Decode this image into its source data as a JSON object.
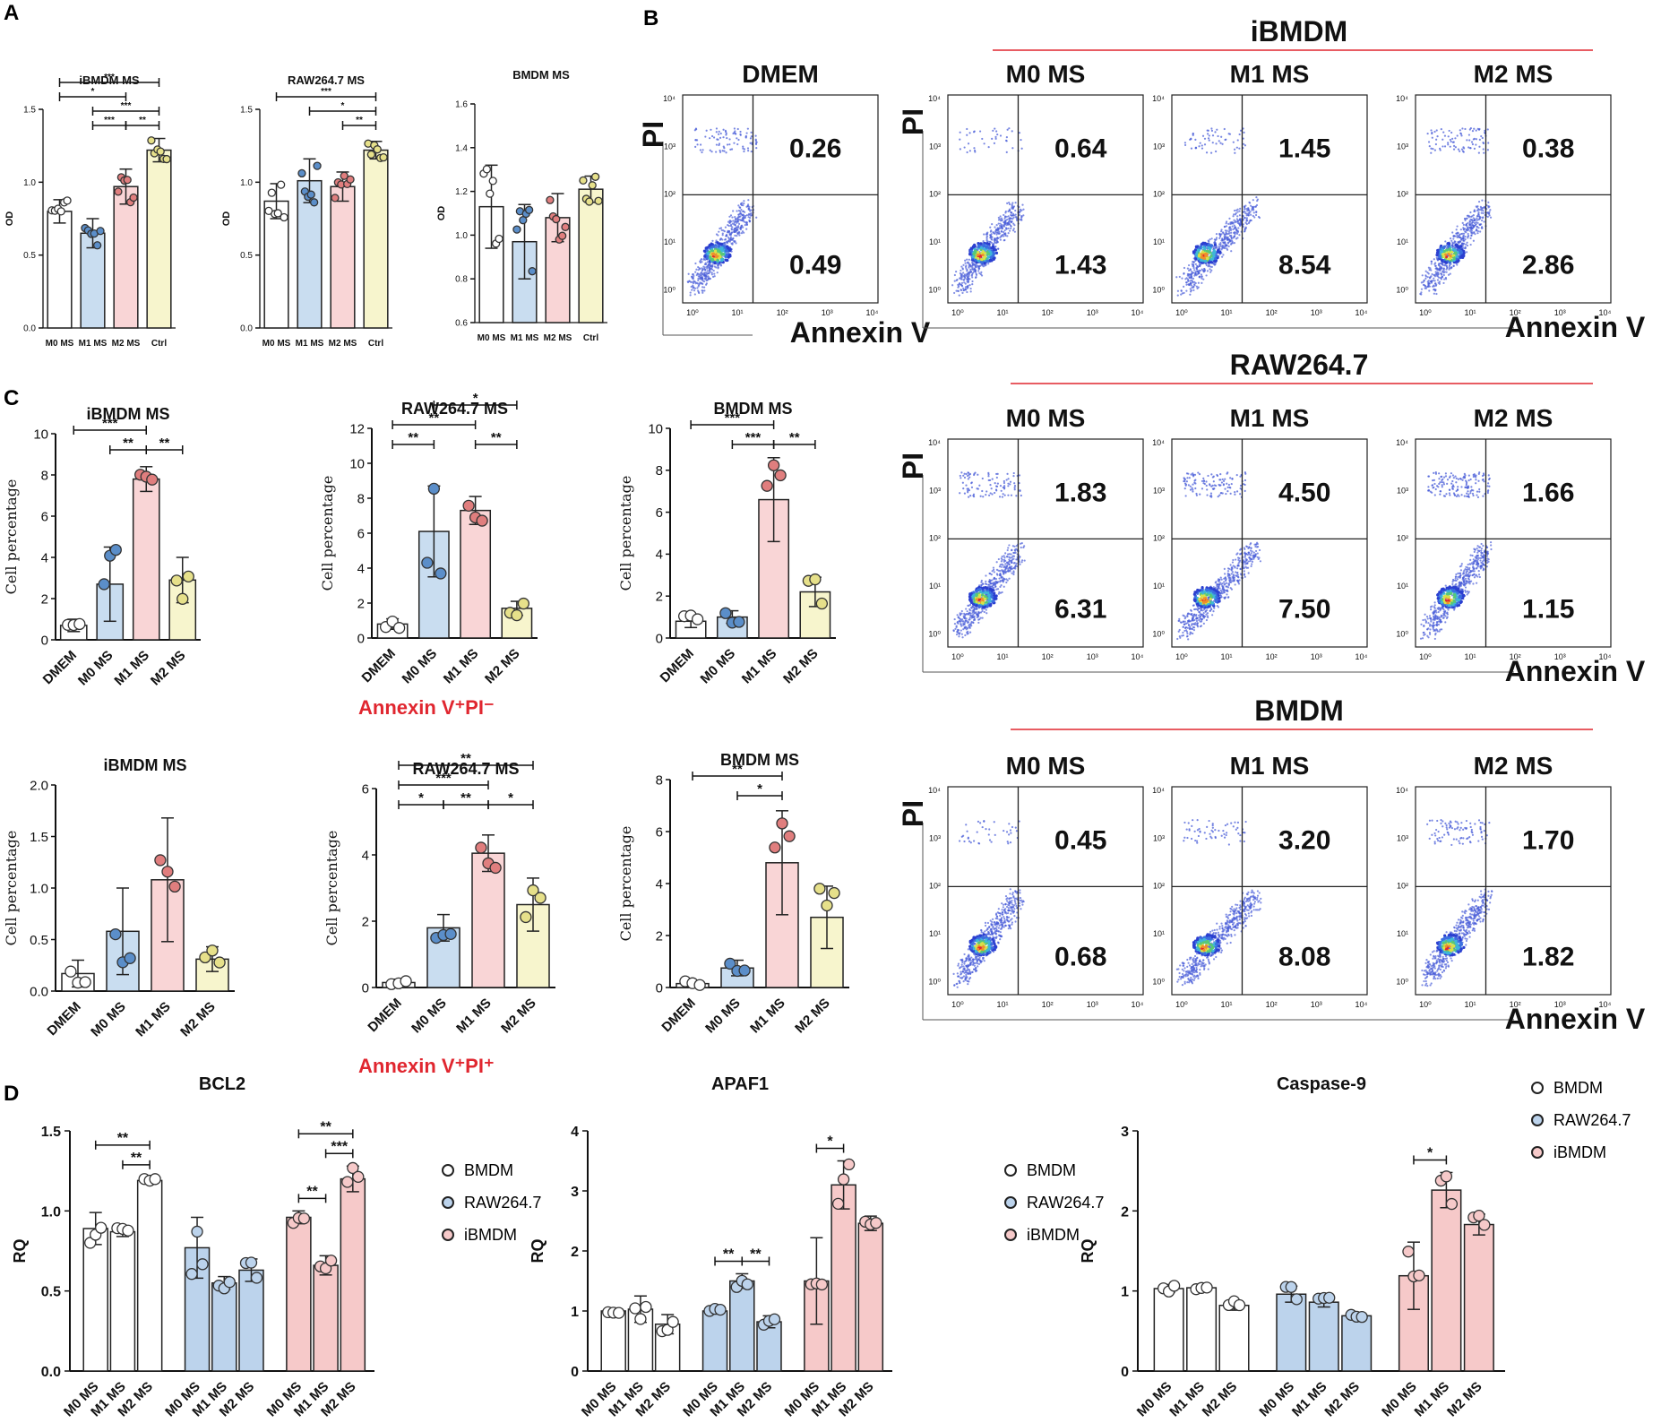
{
  "panel_letters": [
    "A",
    "B",
    "C",
    "D"
  ],
  "colors": {
    "M0": "#ffffff",
    "M1": "#c9ddf0",
    "M2": "#f9d5d6",
    "Ctrl": "#f7f5cd",
    "DMEM": "#ffffff",
    "BMDM": "#ffffff",
    "RAW264.7": "#bcd3ec",
    "iBMDM": "#f6c9c9",
    "dotM1": "#5b8ec9",
    "dotM2": "#e07e7e",
    "dotCtrl": "#e6e08a",
    "red": "#e0262f"
  },
  "chart_data": [
    {
      "id": "A1",
      "type": "bar",
      "title": "iBMDM MS",
      "ylabel": "OD",
      "categories": [
        "M0 MS",
        "M1 MS",
        "M2 MS",
        "Ctrl"
      ],
      "values": [
        0.8,
        0.65,
        0.97,
        1.22
      ],
      "errors": [
        0.08,
        0.1,
        0.12,
        0.08
      ],
      "ylim": [
        0,
        1.5
      ],
      "yticks": [
        "0.0",
        "0.5",
        "1.0",
        "1.5"
      ],
      "significance": [
        {
          "a": 0,
          "b": 3,
          "label": "***"
        },
        {
          "a": 1,
          "b": 3,
          "label": "***"
        },
        {
          "a": 2,
          "b": 3,
          "label": "**"
        },
        {
          "a": 0,
          "b": 2,
          "label": "*"
        },
        {
          "a": 1,
          "b": 2,
          "label": "***"
        }
      ]
    },
    {
      "id": "A2",
      "type": "bar",
      "title": "RAW264.7 MS",
      "ylabel": "OD",
      "categories": [
        "M0 MS",
        "M1 MS",
        "M2 MS",
        "Ctrl"
      ],
      "values": [
        0.87,
        1.01,
        0.97,
        1.22
      ],
      "errors": [
        0.12,
        0.15,
        0.1,
        0.06
      ],
      "ylim": [
        0,
        1.5
      ],
      "yticks": [
        "0.0",
        "0.5",
        "1.0",
        "1.5"
      ],
      "significance": [
        {
          "a": 0,
          "b": 3,
          "label": "***"
        },
        {
          "a": 1,
          "b": 3,
          "label": "*"
        },
        {
          "a": 2,
          "b": 3,
          "label": "**"
        }
      ]
    },
    {
      "id": "A3",
      "type": "bar",
      "title": "BMDM MS",
      "ylabel": "OD",
      "categories": [
        "M0 MS",
        "M1 MS",
        "M2 MS",
        "Ctrl"
      ],
      "values": [
        1.13,
        0.97,
        1.08,
        1.21
      ],
      "errors": [
        0.19,
        0.17,
        0.11,
        0.06
      ],
      "ylim": [
        0.6,
        1.6
      ],
      "yticks": [
        "0.6",
        "0.8",
        "1.0",
        "1.2",
        "1.4",
        "1.6"
      ],
      "significance": []
    },
    {
      "id": "C1",
      "type": "bar",
      "title": "iBMDM MS",
      "ylabel": "Cell percentage",
      "categories": [
        "DMEM",
        "M0 MS",
        "M1 MS",
        "M2 MS"
      ],
      "values": [
        0.7,
        2.7,
        7.8,
        2.9
      ],
      "errors": [
        0.3,
        1.8,
        0.6,
        1.1
      ],
      "ylim": [
        0,
        10
      ],
      "yticks": [
        "0",
        "2",
        "4",
        "6",
        "8",
        "10"
      ],
      "significance": [
        {
          "a": 0,
          "b": 2,
          "label": "***"
        },
        {
          "a": 1,
          "b": 2,
          "label": "**"
        },
        {
          "a": 2,
          "b": 3,
          "label": "**"
        }
      ]
    },
    {
      "id": "C2",
      "type": "bar",
      "title": "RAW264.7 MS",
      "ylabel": "Cell percentage",
      "categories": [
        "DMEM",
        "M0 MS",
        "M1 MS",
        "M2 MS"
      ],
      "values": [
        0.8,
        6.1,
        7.3,
        1.7
      ],
      "errors": [
        0.3,
        2.6,
        0.8,
        0.4
      ],
      "ylim": [
        0,
        12
      ],
      "yticks": [
        "0",
        "2",
        "4",
        "6",
        "8",
        "10",
        "12"
      ],
      "significance": [
        {
          "a": 0,
          "b": 2,
          "label": "**"
        },
        {
          "a": 1,
          "b": 3,
          "label": "*"
        },
        {
          "a": 0,
          "b": 1,
          "label": "**"
        },
        {
          "a": 2,
          "b": 3,
          "label": "**"
        }
      ]
    },
    {
      "id": "C3",
      "type": "bar",
      "title": "BMDM MS",
      "ylabel": "Cell percentage",
      "categories": [
        "DMEM",
        "M0 MS",
        "M1 MS",
        "M2 MS"
      ],
      "values": [
        0.8,
        1.0,
        6.6,
        2.2
      ],
      "errors": [
        0.3,
        0.3,
        2.0,
        0.7
      ],
      "ylim": [
        0,
        10
      ],
      "yticks": [
        "0",
        "2",
        "4",
        "6",
        "8",
        "10"
      ],
      "significance": [
        {
          "a": 0,
          "b": 2,
          "label": "***"
        },
        {
          "a": 1,
          "b": 2,
          "label": "***"
        },
        {
          "a": 2,
          "b": 3,
          "label": "**"
        }
      ]
    },
    {
      "id": "C4",
      "type": "bar",
      "title": "iBMDM MS",
      "ylabel": "Cell percentage",
      "categories": [
        "DMEM",
        "M0 MS",
        "M1 MS",
        "M2 MS"
      ],
      "values": [
        0.17,
        0.58,
        1.08,
        0.31
      ],
      "errors": [
        0.13,
        0.42,
        0.6,
        0.12
      ],
      "ylim": [
        0,
        2.0
      ],
      "yticks": [
        "0.0",
        "0.5",
        "1.0",
        "1.5",
        "2.0"
      ],
      "significance": []
    },
    {
      "id": "C5",
      "type": "bar",
      "title": "RAW264.7 MS",
      "ylabel": "Cell percentage",
      "categories": [
        "DMEM",
        "M0 MS",
        "M1 MS",
        "M2 MS"
      ],
      "values": [
        0.15,
        1.8,
        4.05,
        2.5
      ],
      "errors": [
        0.1,
        0.4,
        0.55,
        0.8
      ],
      "ylim": [
        0,
        6
      ],
      "yticks": [
        "0",
        "2",
        "4",
        "6"
      ],
      "significance": [
        {
          "a": 0,
          "b": 3,
          "label": "**"
        },
        {
          "a": 0,
          "b": 2,
          "label": "***"
        },
        {
          "a": 0,
          "b": 1,
          "label": "*"
        },
        {
          "a": 1,
          "b": 2,
          "label": "**"
        },
        {
          "a": 2,
          "b": 3,
          "label": "*"
        }
      ]
    },
    {
      "id": "C6",
      "type": "bar",
      "title": "BMDM MS",
      "ylabel": "Cell percentage",
      "categories": [
        "DMEM",
        "M0 MS",
        "M1 MS",
        "M2 MS"
      ],
      "values": [
        0.15,
        0.75,
        4.8,
        2.7
      ],
      "errors": [
        0.1,
        0.3,
        2.0,
        1.2
      ],
      "ylim": [
        0,
        8
      ],
      "yticks": [
        "0",
        "2",
        "4",
        "6",
        "8"
      ],
      "significance": [
        {
          "a": 0,
          "b": 2,
          "label": "**"
        },
        {
          "a": 1,
          "b": 2,
          "label": "*"
        }
      ]
    },
    {
      "id": "D1",
      "type": "grouped-bar",
      "title": "BCL2",
      "ylabel": "RQ",
      "groups": [
        "BMDM",
        "RAW264.7",
        "iBMDM"
      ],
      "categories": [
        "M0 MS",
        "M1 MS",
        "M2 MS"
      ],
      "series": [
        {
          "name": "BMDM",
          "values": [
            0.89,
            0.87,
            1.19
          ],
          "errors": [
            0.1,
            0.03,
            0.02
          ]
        },
        {
          "name": "RAW264.7",
          "values": [
            0.77,
            0.55,
            0.63
          ],
          "errors": [
            0.19,
            0.04,
            0.07
          ]
        },
        {
          "name": "iBMDM",
          "values": [
            0.96,
            0.66,
            1.2
          ],
          "errors": [
            0.04,
            0.06,
            0.08
          ]
        }
      ],
      "ylim": [
        0,
        1.5
      ],
      "yticks": [
        "0.0",
        "0.5",
        "1.0",
        "1.5"
      ],
      "significance": [
        {
          "g": 0,
          "a": 0,
          "b": 2,
          "label": "**"
        },
        {
          "g": 0,
          "a": 1,
          "b": 2,
          "label": "**"
        },
        {
          "g": 2,
          "a": 0,
          "b": 2,
          "label": "**"
        },
        {
          "g": 2,
          "a": 1,
          "b": 2,
          "label": "***"
        },
        {
          "g": 2,
          "a": 0,
          "b": 1,
          "label": "**"
        }
      ]
    },
    {
      "id": "D2",
      "type": "grouped-bar",
      "title": "APAF1",
      "ylabel": "RQ",
      "groups": [
        "BMDM",
        "RAW264.7",
        "iBMDM"
      ],
      "categories": [
        "M0 MS",
        "M1 MS",
        "M2 MS"
      ],
      "series": [
        {
          "name": "BMDM",
          "values": [
            1.0,
            1.03,
            0.78
          ],
          "errors": [
            0.05,
            0.22,
            0.16
          ]
        },
        {
          "name": "RAW264.7",
          "values": [
            1.0,
            1.5,
            0.82
          ],
          "errors": [
            0.05,
            0.12,
            0.1
          ]
        },
        {
          "name": "iBMDM",
          "values": [
            1.5,
            3.1,
            2.46
          ],
          "errors": [
            0.72,
            0.4,
            0.12
          ]
        }
      ],
      "ylim": [
        0,
        4
      ],
      "yticks": [
        "0",
        "1",
        "2",
        "3",
        "4"
      ],
      "significance": [
        {
          "g": 1,
          "a": 0,
          "b": 1,
          "label": "**"
        },
        {
          "g": 1,
          "a": 1,
          "b": 2,
          "label": "**"
        },
        {
          "g": 2,
          "a": 0,
          "b": 1,
          "label": "*"
        }
      ]
    },
    {
      "id": "D3",
      "type": "grouped-bar",
      "title": "Caspase-9",
      "ylabel": "RQ",
      "groups": [
        "BMDM",
        "RAW264.7",
        "iBMDM"
      ],
      "categories": [
        "M0 MS",
        "M1 MS",
        "M2 MS"
      ],
      "series": [
        {
          "name": "BMDM",
          "values": [
            1.03,
            1.04,
            0.82
          ],
          "errors": [
            0.05,
            0.03,
            0.06
          ]
        },
        {
          "name": "RAW264.7",
          "values": [
            0.96,
            0.86,
            0.69
          ],
          "errors": [
            0.1,
            0.06,
            0.03
          ]
        },
        {
          "name": "iBMDM",
          "values": [
            1.19,
            2.26,
            1.83
          ],
          "errors": [
            0.42,
            0.22,
            0.13
          ]
        }
      ],
      "ylim": [
        0,
        3
      ],
      "yticks": [
        "0",
        "1",
        "2",
        "3"
      ],
      "significance": [
        {
          "g": 2,
          "a": 0,
          "b": 1,
          "label": "*"
        }
      ]
    }
  ],
  "legend_d": [
    "BMDM",
    "RAW264.7",
    "iBMDM"
  ],
  "annexin_labels": {
    "top": "Annexin V⁺PI⁻",
    "bottom": "Annexin V⁺PI⁺"
  },
  "flow": {
    "axis_x": "Annexin V",
    "axis_y": "PI",
    "tick_labels": [
      "10⁰",
      "10¹",
      "10²",
      "10³",
      "10⁴"
    ],
    "dmem": {
      "title": "DMEM",
      "upper": "0.26",
      "lower": "0.49"
    },
    "rows": [
      {
        "group": "iBMDM",
        "plots": [
          {
            "title": "M0 MS",
            "upper": "0.64",
            "lower": "1.43"
          },
          {
            "title": "M1 MS",
            "upper": "1.45",
            "lower": "8.54"
          },
          {
            "title": "M2 MS",
            "upper": "0.38",
            "lower": "2.86"
          }
        ]
      },
      {
        "group": "RAW264.7",
        "plots": [
          {
            "title": "M0 MS",
            "upper": "1.83",
            "lower": "6.31"
          },
          {
            "title": "M1 MS",
            "upper": "4.50",
            "lower": "7.50"
          },
          {
            "title": "M2 MS",
            "upper": "1.66",
            "lower": "1.15"
          }
        ]
      },
      {
        "group": "BMDM",
        "plots": [
          {
            "title": "M0 MS",
            "upper": "0.45",
            "lower": "0.68"
          },
          {
            "title": "M1 MS",
            "upper": "3.20",
            "lower": "8.08"
          },
          {
            "title": "M2 MS",
            "upper": "1.70",
            "lower": "1.82"
          }
        ]
      }
    ]
  }
}
